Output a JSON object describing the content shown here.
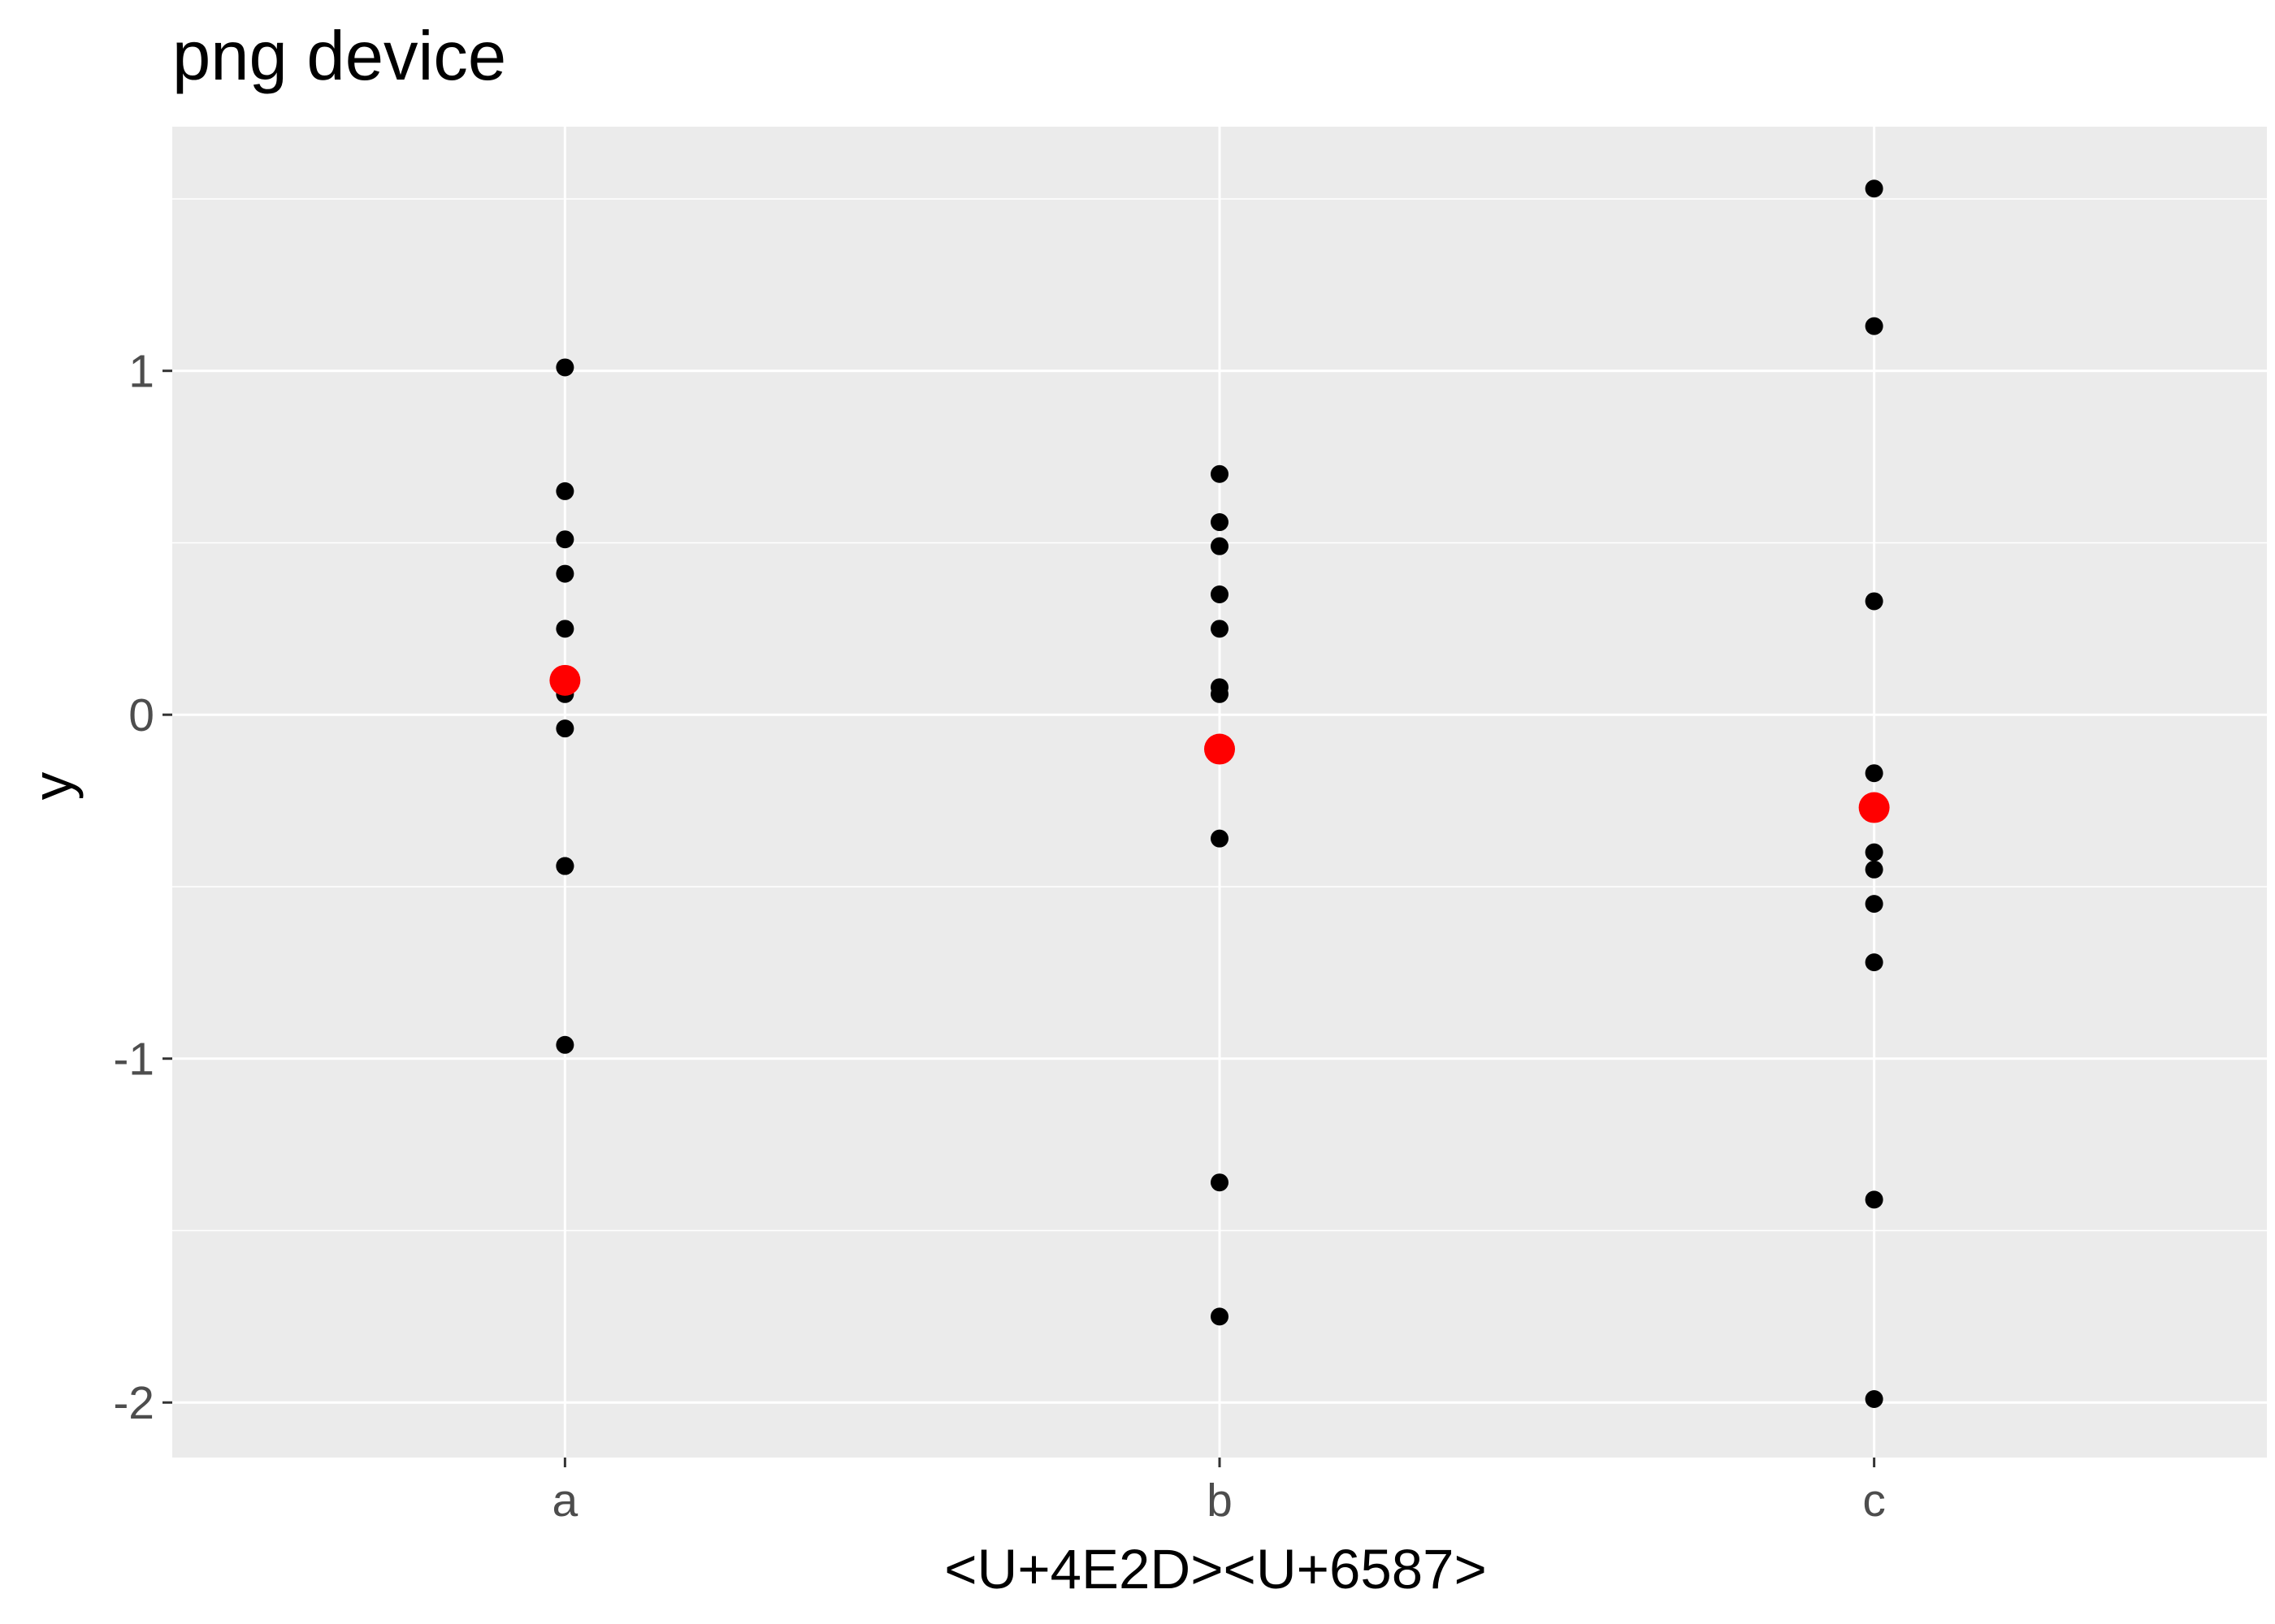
{
  "chart_data": {
    "type": "scatter",
    "title": "png device",
    "xlabel": "<U+4E2D><U+6587>",
    "ylabel": "y",
    "categories": [
      "a",
      "b",
      "c"
    ],
    "ylim": [
      -2.16,
      1.71
    ],
    "y_ticks": [
      -2,
      -1,
      0,
      1
    ],
    "y_tick_labels": [
      "-2",
      "-1",
      "0",
      "1"
    ],
    "grid": true,
    "legend": "none",
    "series": [
      {
        "category": "a",
        "values": [
          1.01,
          0.65,
          0.51,
          0.41,
          0.25,
          0.06,
          -0.04,
          -0.44,
          -0.44,
          -0.96
        ]
      },
      {
        "category": "b",
        "values": [
          0.7,
          0.56,
          0.49,
          0.35,
          0.25,
          0.08,
          0.06,
          -0.36,
          -1.36,
          -1.75
        ]
      },
      {
        "category": "c",
        "values": [
          1.53,
          1.13,
          0.33,
          -0.17,
          -0.4,
          -0.45,
          -0.55,
          -0.72,
          -1.41,
          -1.99
        ]
      }
    ],
    "means": [
      {
        "category": "a",
        "value": 0.1
      },
      {
        "category": "b",
        "value": -0.1
      },
      {
        "category": "c",
        "value": -0.27
      }
    ],
    "colors": {
      "point": "#000000",
      "mean": "#FF0000",
      "panel": "#EBEBEB",
      "grid": "#FFFFFF"
    }
  }
}
